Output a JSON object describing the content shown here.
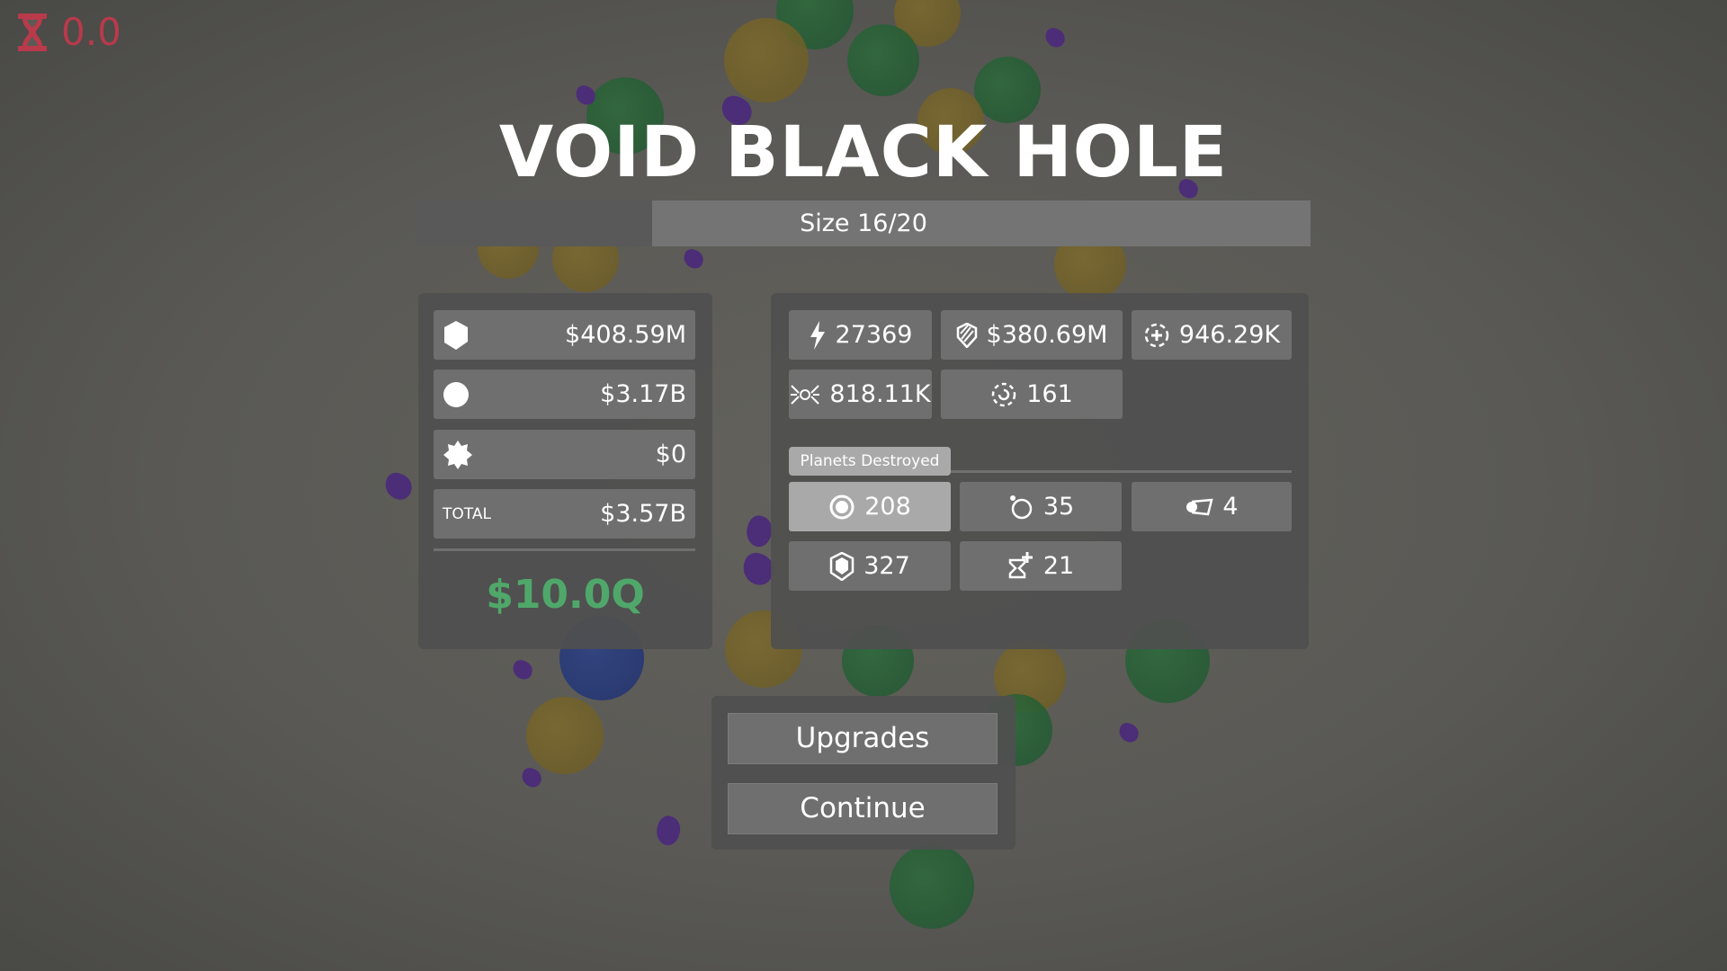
{
  "hud": {
    "timer_icon": "hourglass-icon",
    "timer_value": "0.0",
    "timer_color": "#b83a4b"
  },
  "title": "VOID BLACK HOLE",
  "size_bar": {
    "label": "Size 16/20",
    "current": 16,
    "max": 20
  },
  "earnings": {
    "rows": [
      {
        "icon": "hexagon-icon",
        "value": "$408.59M"
      },
      {
        "icon": "circle-icon",
        "value": "$3.17B"
      },
      {
        "icon": "star-burst-icon",
        "value": "$0"
      }
    ],
    "total_label": "TOTAL",
    "total_value": "$3.57B",
    "balance": "$10.0Q",
    "balance_color": "#4fa86a"
  },
  "stats": [
    {
      "icon": "lightning-icon",
      "value": "27369"
    },
    {
      "icon": "striped-shield-icon",
      "value": "$380.69M"
    },
    {
      "icon": "dashed-plus-circle-icon",
      "value": "946.29K"
    },
    {
      "icon": "attract-icon",
      "value": "818.11K"
    },
    {
      "icon": "dashed-rotate-icon",
      "value": "161"
    }
  ],
  "planets_destroyed": {
    "label": "Planets Destroyed",
    "items": [
      {
        "icon": "ring-planet-icon",
        "value": "208",
        "selected": true
      },
      {
        "icon": "moon-orbit-icon",
        "value": "35"
      },
      {
        "icon": "comet-icon",
        "value": "4"
      },
      {
        "icon": "hexagon-outline-icon",
        "value": "327"
      },
      {
        "icon": "hourglass-plus-icon",
        "value": "21"
      }
    ]
  },
  "buttons": {
    "upgrades": "Upgrades",
    "continue": "Continue"
  }
}
